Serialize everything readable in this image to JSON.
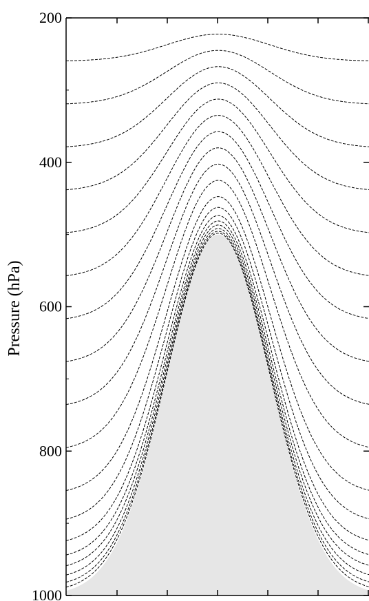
{
  "chart_data": {
    "type": "line",
    "title": "",
    "xlabel": "",
    "ylabel": "Pressure (hPa)",
    "ylim": [
      1000,
      200
    ],
    "y_inverted": true,
    "y_ticks": [
      "200",
      "400",
      "600",
      "800",
      "1000"
    ],
    "x_tick_count": 6,
    "grid": false,
    "colors": {
      "line": "#000000",
      "terrain_fill": "#e6e6e6",
      "axis": "#000000"
    },
    "terrain": {
      "peak_pressure": 500,
      "base_pressure": 1000,
      "shape": "gaussian mountain"
    },
    "series_line_style": "dashed",
    "level_pressures": [
      200,
      260,
      320,
      380,
      440,
      500,
      560,
      620,
      680,
      740,
      800,
      860,
      900,
      930,
      950,
      965,
      978,
      988,
      995
    ]
  }
}
